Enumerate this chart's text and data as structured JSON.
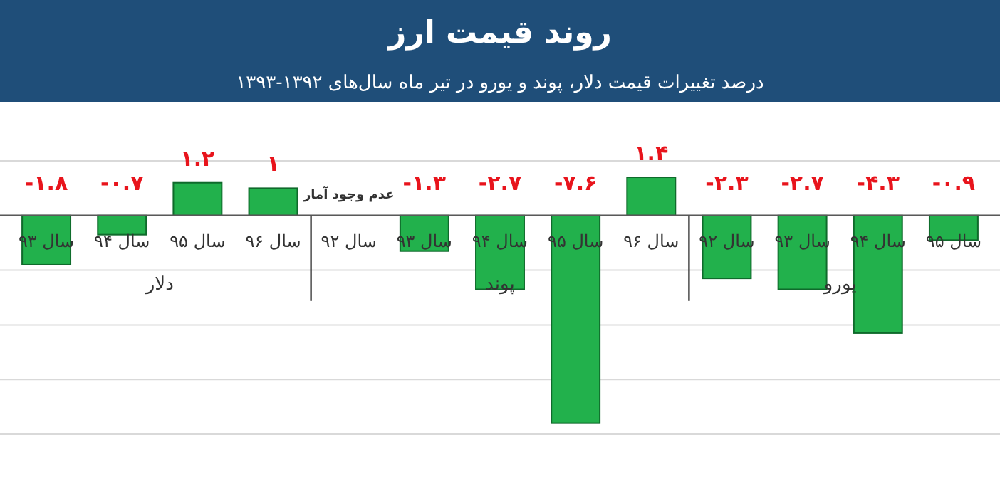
{
  "chart_data": {
    "type": "bar",
    "title": "روند قیمت ارز",
    "subtitle": "درصد تغییرات قیمت دلار، پوند و یورو در تیر ماه سال‌های ۱۳۹۲-۱۳۹۳",
    "categories": [
      "سال ۹۳",
      "سال ۹۴",
      "سال ۹۵",
      "سال ۹۶",
      "سال ۹۲",
      "سال ۹۳",
      "سال ۹۴",
      "سال ۹۵",
      "سال ۹۶",
      "سال ۹۲",
      "سال ۹۳",
      "سال ۹۴",
      "سال ۹۵"
    ],
    "values": [
      -1.8,
      -0.7,
      1.2,
      1,
      null,
      -1.3,
      -2.7,
      -7.6,
      1.4,
      -2.3,
      -2.7,
      -4.3,
      -0.9
    ],
    "value_labels": [
      "-۱.۸",
      "-۰.۷",
      "۱.۲",
      "۱",
      null,
      "-۱.۳",
      "-۲.۷",
      "-۷.۶",
      "۱.۴",
      "-۲.۳",
      "-۲.۷",
      "-۴.۳",
      "-۰.۹"
    ],
    "color": "#22b14c",
    "ylim": [
      -8,
      2
    ],
    "yticks": [
      {
        "value": -8,
        "label": null
      },
      {
        "value": -6,
        "label": null
      },
      {
        "value": -4,
        "label": null
      },
      {
        "value": -2,
        "label": null
      },
      {
        "value": 0,
        "label": null
      },
      {
        "value": 2,
        "label": null
      }
    ],
    "grid": "y",
    "annotations": [
      "عدم وجود آمار",
      "دلار",
      "پوند",
      "یورو"
    ]
  }
}
